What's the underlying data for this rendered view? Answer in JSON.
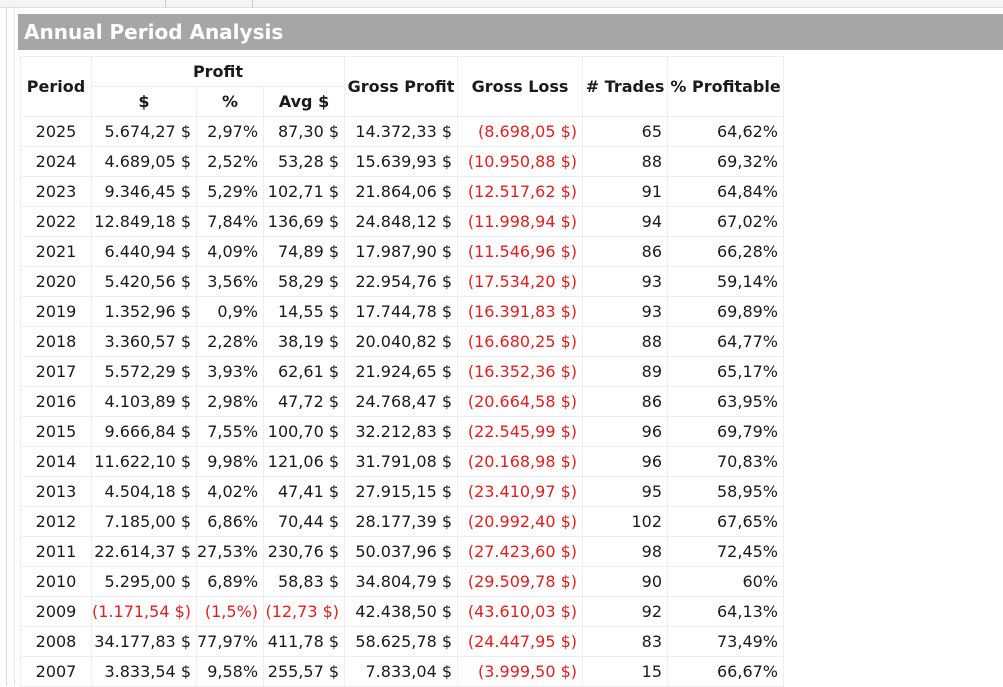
{
  "title": "Annual Period Analysis",
  "headers": {
    "period": "Period",
    "profit": "Profit",
    "profit_dollar": "$",
    "profit_pct": "%",
    "profit_avg": "Avg $",
    "gross_profit": "Gross Profit",
    "gross_loss": "Gross Loss",
    "trades": "# Trades",
    "pct_profitable": "% Profitable"
  },
  "colors": {
    "header_bg": "#a6a6a6",
    "negative": "#e02020"
  },
  "rows": [
    {
      "period": "2025",
      "dollar": "5.674,27 $",
      "pct": "2,97%",
      "avg": "87,30 $",
      "gross_profit": "14.372,33 $",
      "gross_loss": "(8.698,05 $)",
      "trades": "65",
      "pct_profitable": "64,62%"
    },
    {
      "period": "2024",
      "dollar": "4.689,05 $",
      "pct": "2,52%",
      "avg": "53,28 $",
      "gross_profit": "15.639,93 $",
      "gross_loss": "(10.950,88 $)",
      "trades": "88",
      "pct_profitable": "69,32%"
    },
    {
      "period": "2023",
      "dollar": "9.346,45 $",
      "pct": "5,29%",
      "avg": "102,71 $",
      "gross_profit": "21.864,06 $",
      "gross_loss": "(12.517,62 $)",
      "trades": "91",
      "pct_profitable": "64,84%"
    },
    {
      "period": "2022",
      "dollar": "12.849,18 $",
      "pct": "7,84%",
      "avg": "136,69 $",
      "gross_profit": "24.848,12 $",
      "gross_loss": "(11.998,94 $)",
      "trades": "94",
      "pct_profitable": "67,02%"
    },
    {
      "period": "2021",
      "dollar": "6.440,94 $",
      "pct": "4,09%",
      "avg": "74,89 $",
      "gross_profit": "17.987,90 $",
      "gross_loss": "(11.546,96 $)",
      "trades": "86",
      "pct_profitable": "66,28%"
    },
    {
      "period": "2020",
      "dollar": "5.420,56 $",
      "pct": "3,56%",
      "avg": "58,29 $",
      "gross_profit": "22.954,76 $",
      "gross_loss": "(17.534,20 $)",
      "trades": "93",
      "pct_profitable": "59,14%"
    },
    {
      "period": "2019",
      "dollar": "1.352,96 $",
      "pct": "0,9%",
      "avg": "14,55 $",
      "gross_profit": "17.744,78 $",
      "gross_loss": "(16.391,83 $)",
      "trades": "93",
      "pct_profitable": "69,89%"
    },
    {
      "period": "2018",
      "dollar": "3.360,57 $",
      "pct": "2,28%",
      "avg": "38,19 $",
      "gross_profit": "20.040,82 $",
      "gross_loss": "(16.680,25 $)",
      "trades": "88",
      "pct_profitable": "64,77%"
    },
    {
      "period": "2017",
      "dollar": "5.572,29 $",
      "pct": "3,93%",
      "avg": "62,61 $",
      "gross_profit": "21.924,65 $",
      "gross_loss": "(16.352,36 $)",
      "trades": "89",
      "pct_profitable": "65,17%"
    },
    {
      "period": "2016",
      "dollar": "4.103,89 $",
      "pct": "2,98%",
      "avg": "47,72 $",
      "gross_profit": "24.768,47 $",
      "gross_loss": "(20.664,58 $)",
      "trades": "86",
      "pct_profitable": "63,95%"
    },
    {
      "period": "2015",
      "dollar": "9.666,84 $",
      "pct": "7,55%",
      "avg": "100,70 $",
      "gross_profit": "32.212,83 $",
      "gross_loss": "(22.545,99 $)",
      "trades": "96",
      "pct_profitable": "69,79%"
    },
    {
      "period": "2014",
      "dollar": "11.622,10 $",
      "pct": "9,98%",
      "avg": "121,06 $",
      "gross_profit": "31.791,08 $",
      "gross_loss": "(20.168,98 $)",
      "trades": "96",
      "pct_profitable": "70,83%"
    },
    {
      "period": "2013",
      "dollar": "4.504,18 $",
      "pct": "4,02%",
      "avg": "47,41 $",
      "gross_profit": "27.915,15 $",
      "gross_loss": "(23.410,97 $)",
      "trades": "95",
      "pct_profitable": "58,95%"
    },
    {
      "period": "2012",
      "dollar": "7.185,00 $",
      "pct": "6,86%",
      "avg": "70,44 $",
      "gross_profit": "28.177,39 $",
      "gross_loss": "(20.992,40 $)",
      "trades": "102",
      "pct_profitable": "67,65%"
    },
    {
      "period": "2011",
      "dollar": "22.614,37 $",
      "pct": "27,53%",
      "avg": "230,76 $",
      "gross_profit": "50.037,96 $",
      "gross_loss": "(27.423,60 $)",
      "trades": "98",
      "pct_profitable": "72,45%"
    },
    {
      "period": "2010",
      "dollar": "5.295,00 $",
      "pct": "6,89%",
      "avg": "58,83 $",
      "gross_profit": "34.804,79 $",
      "gross_loss": "(29.509,78 $)",
      "trades": "90",
      "pct_profitable": "60%"
    },
    {
      "period": "2009",
      "dollar": "(1.171,54 $)",
      "pct": "(1,5%)",
      "avg": "(12,73 $)",
      "gross_profit": "42.438,50 $",
      "gross_loss": "(43.610,03 $)",
      "trades": "92",
      "pct_profitable": "64,13%"
    },
    {
      "period": "2008",
      "dollar": "34.177,83 $",
      "pct": "77,97%",
      "avg": "411,78 $",
      "gross_profit": "58.625,78 $",
      "gross_loss": "(24.447,95 $)",
      "trades": "83",
      "pct_profitable": "73,49%"
    },
    {
      "period": "2007",
      "dollar": "3.833,54 $",
      "pct": "9,58%",
      "avg": "255,57 $",
      "gross_profit": "7.833,04 $",
      "gross_loss": "(3.999,50 $)",
      "trades": "15",
      "pct_profitable": "66,67%"
    }
  ]
}
